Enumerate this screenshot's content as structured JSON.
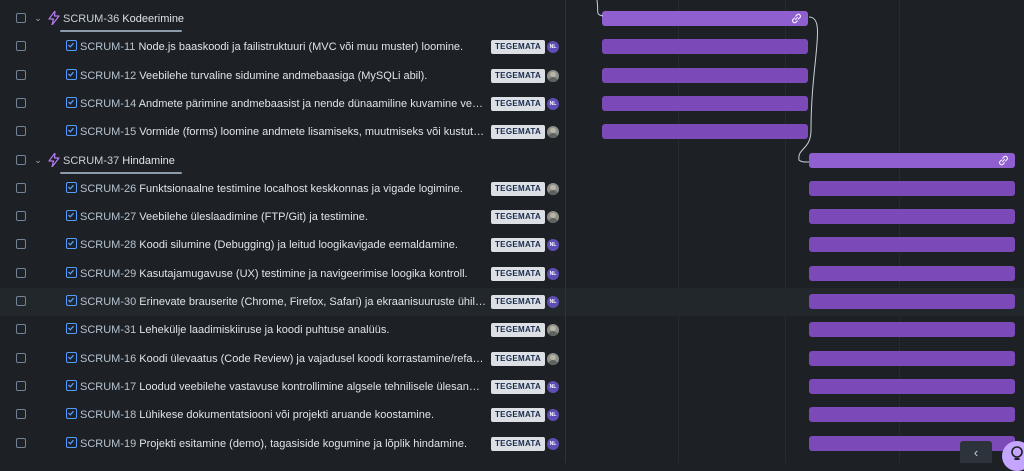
{
  "colors": {
    "background": "#1d2125",
    "epic_bar": "#8f5fd0",
    "task_bar": "#7c4ab8",
    "status_bg": "#dcdfe4",
    "task_icon": "#579dff",
    "epic_icon": "#b57cf2"
  },
  "rows": [
    {
      "type": "epic",
      "key": "SCRUM-36",
      "summary": "Kodeerimine"
    },
    {
      "type": "task",
      "key": "SCRUM-11",
      "summary": "Node.js baaskoodi ja failistruktuuri (MVC või muu muster) loomine.",
      "status": "TEGEMATA",
      "assignee": "NL"
    },
    {
      "type": "task",
      "key": "SCRUM-12",
      "summary": "Veebilehe turvaline sidumine andmebaasiga (MySQLi abil).",
      "status": "TEGEMATA",
      "assignee": "photo"
    },
    {
      "type": "task",
      "key": "SCRUM-14",
      "summary": "Andmete pärimine andmebaasist ja nende dünaamiline kuvamine veebile...",
      "status": "TEGEMATA",
      "assignee": "NL"
    },
    {
      "type": "task",
      "key": "SCRUM-15",
      "summary": "Vormide (forms) loomine andmete lisamiseks, muutmiseks või kustutamis...",
      "status": "TEGEMATA",
      "assignee": "photo"
    },
    {
      "type": "epic",
      "key": "SCRUM-37",
      "summary": "Hindamine"
    },
    {
      "type": "task",
      "key": "SCRUM-26",
      "summary": "Funktsionaalne testimine localhost keskkonnas ja vigade logimine.",
      "status": "TEGEMATA",
      "assignee": "photo"
    },
    {
      "type": "task",
      "key": "SCRUM-27",
      "summary": "Veebilehe üleslaadimine (FTP/Git) ja testimine.",
      "status": "TEGEMATA",
      "assignee": "photo"
    },
    {
      "type": "task",
      "key": "SCRUM-28",
      "summary": "Koodi silumine (Debugging) ja leitud loogikavigade eemaldamine.",
      "status": "TEGEMATA",
      "assignee": "NL"
    },
    {
      "type": "task",
      "key": "SCRUM-29",
      "summary": "Kasutajamugavuse (UX) testimine ja navigeerimise loogika kontroll.",
      "status": "TEGEMATA",
      "assignee": "NL"
    },
    {
      "type": "task",
      "key": "SCRUM-30",
      "summary": "Erinevate brauserite (Chrome, Firefox, Safari) ja ekraanisuuruste ühilduv...",
      "status": "TEGEMATA",
      "assignee": "NL"
    },
    {
      "type": "task",
      "key": "SCRUM-31",
      "summary": "Lehekülje laadimiskiiruse ja koodi puhtuse analüüs.",
      "status": "TEGEMATA",
      "assignee": "photo"
    },
    {
      "type": "task",
      "key": "SCRUM-16",
      "summary": "Koodi ülevaatus (Code Review) ja vajadusel koodi korrastamine/refaktore...",
      "status": "TEGEMATA",
      "assignee": "photo"
    },
    {
      "type": "task",
      "key": "SCRUM-17",
      "summary": "Loodud veebilehe vastavuse kontrollimine algsele tehnilisele ülesandele.",
      "status": "TEGEMATA",
      "assignee": "NL"
    },
    {
      "type": "task",
      "key": "SCRUM-18",
      "summary": "Lühikese dokumentatsiooni või projekti aruande koostamine.",
      "status": "TEGEMATA",
      "assignee": "NL"
    },
    {
      "type": "task",
      "key": "SCRUM-19",
      "summary": "Projekti esitamine (demo), tagasiside kogumine ja lõplik hindamine.",
      "status": "TEGEMATA",
      "assignee": "NL"
    }
  ],
  "nav": {
    "prev_label": "‹"
  }
}
